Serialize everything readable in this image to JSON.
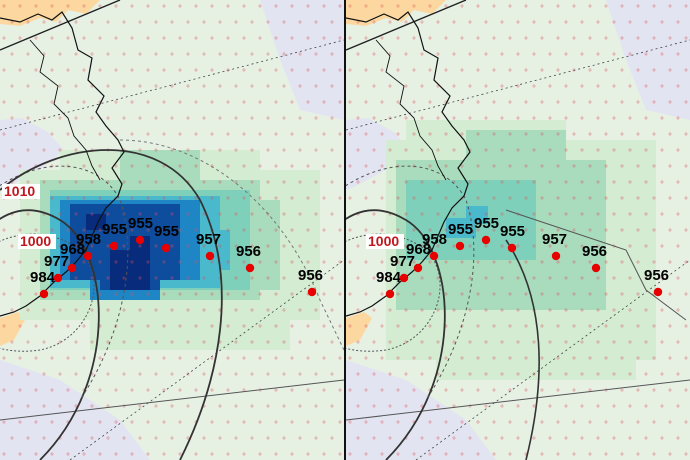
{
  "colors": {
    "ocean": "#e6f1e4",
    "land": "#fcd8a0",
    "land_lavender": "#e2e2f3",
    "grid_cross": "#e0505a",
    "track_dot": "#e60000",
    "coast": "#111111",
    "contour_label": "#c0161c",
    "shade_scale": [
      "#d3ecd2",
      "#a9dcbd",
      "#7fd0bb",
      "#49b9cb",
      "#1e86c4",
      "#0e4d9e",
      "#082b7c"
    ]
  },
  "panels": [
    {
      "id": "left",
      "contour_labels": [
        "1010",
        "1000"
      ],
      "track": [
        {
          "label": "984"
        },
        {
          "label": "977"
        },
        {
          "label": "968"
        },
        {
          "label": "958"
        },
        {
          "label": "955"
        },
        {
          "label": "955"
        },
        {
          "label": "955"
        },
        {
          "label": "957"
        },
        {
          "label": "956"
        },
        {
          "label": "956"
        }
      ]
    },
    {
      "id": "right",
      "contour_labels": [
        "1000"
      ],
      "track": [
        {
          "label": "984"
        },
        {
          "label": "977"
        },
        {
          "label": "968"
        },
        {
          "label": "958"
        },
        {
          "label": "955"
        },
        {
          "label": "955"
        },
        {
          "label": "955"
        },
        {
          "label": "957"
        },
        {
          "label": "956"
        },
        {
          "label": "956"
        }
      ]
    }
  ]
}
